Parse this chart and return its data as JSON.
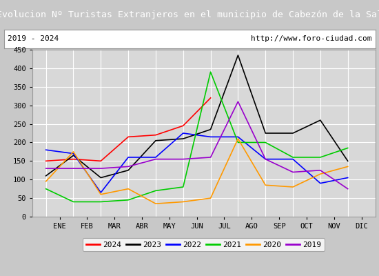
{
  "title": "Evolucion Nº Turistas Extranjeros en el municipio de Cabezón de la Sal",
  "subtitle_left": "2019 - 2024",
  "subtitle_right": "http://www.foro-ciudad.com",
  "title_bg": "#4472c4",
  "title_color": "#ffffff",
  "months": [
    "ENE",
    "FEB",
    "MAR",
    "ABR",
    "MAY",
    "JUN",
    "JUL",
    "AGO",
    "SEP",
    "OCT",
    "NOV",
    "DIC"
  ],
  "ylim": [
    0,
    450
  ],
  "yticks": [
    0,
    50,
    100,
    150,
    200,
    250,
    300,
    350,
    400,
    450
  ],
  "series": {
    "2024": {
      "color": "#ff0000",
      "data": [
        150,
        155,
        150,
        215,
        220,
        245,
        320,
        null,
        null,
        null,
        null,
        null
      ]
    },
    "2023": {
      "color": "#000000",
      "data": [
        110,
        165,
        105,
        125,
        205,
        210,
        235,
        435,
        225,
        225,
        260,
        150
      ]
    },
    "2022": {
      "color": "#0000ff",
      "data": [
        180,
        170,
        65,
        160,
        160,
        225,
        215,
        215,
        155,
        155,
        90,
        105
      ]
    },
    "2021": {
      "color": "#00cc00",
      "data": [
        75,
        40,
        40,
        45,
        70,
        80,
        390,
        200,
        200,
        160,
        160,
        185
      ]
    },
    "2020": {
      "color": "#ff9900",
      "data": [
        95,
        175,
        60,
        75,
        35,
        40,
        50,
        210,
        85,
        80,
        115,
        135
      ]
    },
    "2019": {
      "color": "#9900cc",
      "data": [
        130,
        130,
        130,
        135,
        155,
        155,
        160,
        310,
        155,
        120,
        125,
        75
      ]
    }
  },
  "legend_order": [
    "2024",
    "2023",
    "2022",
    "2021",
    "2020",
    "2019"
  ],
  "plot_facecolor": "#d8d8d8",
  "grid_color": "#ffffff",
  "fig_bg": "#c8c8c8",
  "title_fontsize": 9.5,
  "subtitle_fontsize": 8,
  "tick_fontsize": 7.5
}
